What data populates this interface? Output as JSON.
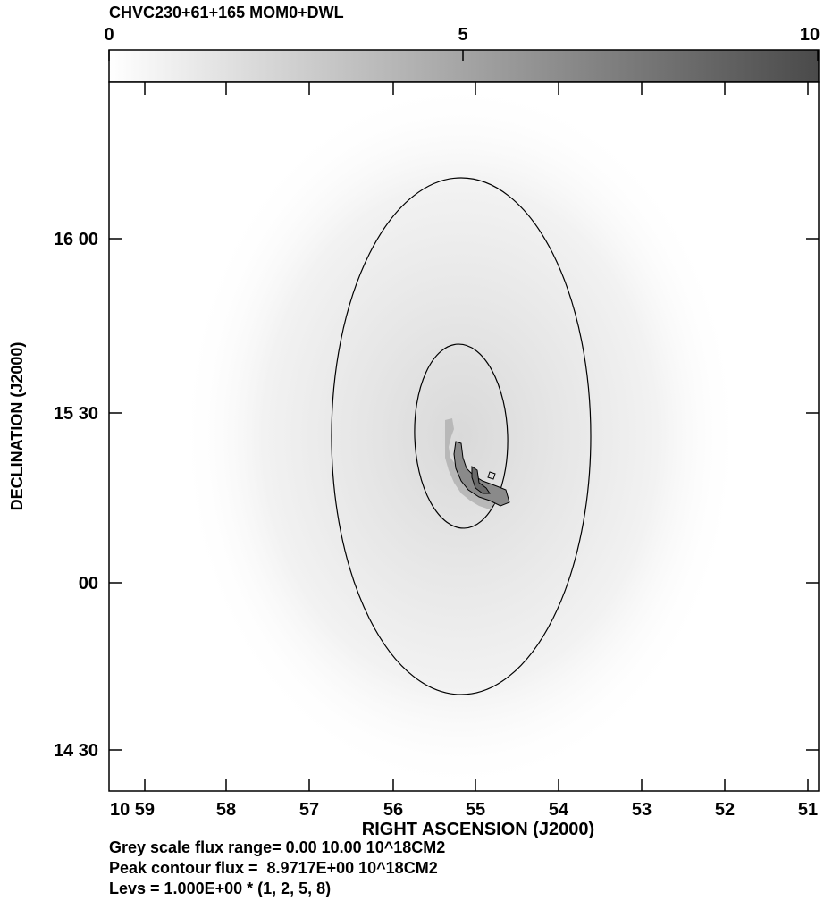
{
  "title": "CHVC230+61+165  MOM0+DWL",
  "colorbar": {
    "ticks": [
      "0",
      "5",
      "10"
    ],
    "range": [
      0,
      10
    ]
  },
  "x_axis": {
    "label": "RIGHT ASCENSION (J2000)",
    "ticks": [
      "10 59",
      "58",
      "57",
      "56",
      "55",
      "54",
      "53",
      "52",
      "51"
    ]
  },
  "y_axis": {
    "label": "DECLINATION (J2000)",
    "ticks": [
      "16 00",
      "15 30",
      "00",
      "14 30"
    ]
  },
  "footer": {
    "grey_range": "Grey scale flux range= 0.00 10.00 10^18CM2",
    "peak": "Peak contour flux =  8.9717E+00 10^18CM2",
    "levs": "Levs = 1.000E+00 * (1, 2, 5, 8)"
  },
  "chart_data": {
    "type": "heatmap",
    "title": "CHVC230+61+165  MOM0+DWL",
    "xlabel": "RIGHT ASCENSION (J2000)",
    "ylabel": "DECLINATION (J2000)",
    "x_ticks": [
      "10 59",
      "58",
      "57",
      "56",
      "55",
      "54",
      "53",
      "52",
      "51"
    ],
    "y_ticks": [
      "16 00",
      "15 30",
      "00",
      "14 30"
    ],
    "colorbar_range": [
      0,
      10
    ],
    "colorbar_unit": "10^18CM2",
    "contour_levels": [
      1,
      2,
      5,
      8
    ],
    "peak_flux": 8.9717,
    "colormap": {
      "low": "#ffffff",
      "high": "#4a4a4a"
    }
  }
}
